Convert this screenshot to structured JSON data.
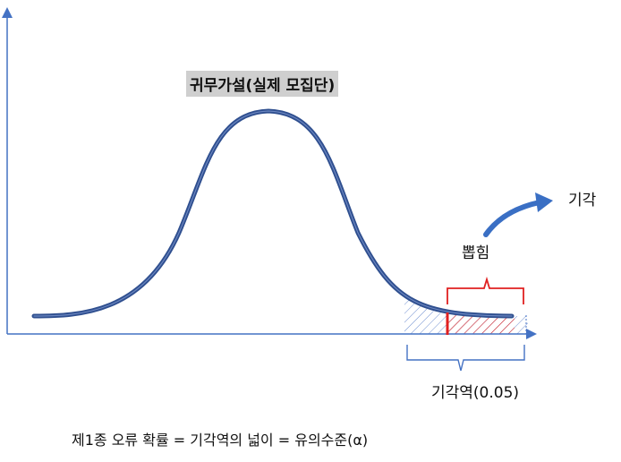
{
  "labels": {
    "null_hypothesis": "귀무가설(실제 모집단)",
    "reject": "기각",
    "sample_extraction": "뽑힘",
    "rejection_region": "기각역(0.05)",
    "formula": "제1종 오류 확률 = 기각역의 넓이 = 유의수준(α)"
  },
  "colors": {
    "axis": "#4472c4",
    "curve": "#2f4f8f",
    "brace_red": "#e02020",
    "brace_blue": "#4472c4",
    "arrow": "#3a6fc4",
    "hatch_blue": "#6f8fd0",
    "hatch_red": "#e03030",
    "label_bg": "#cfcfcf"
  },
  "icons": {
    "reject_arrow": "curved-arrow-icon"
  }
}
